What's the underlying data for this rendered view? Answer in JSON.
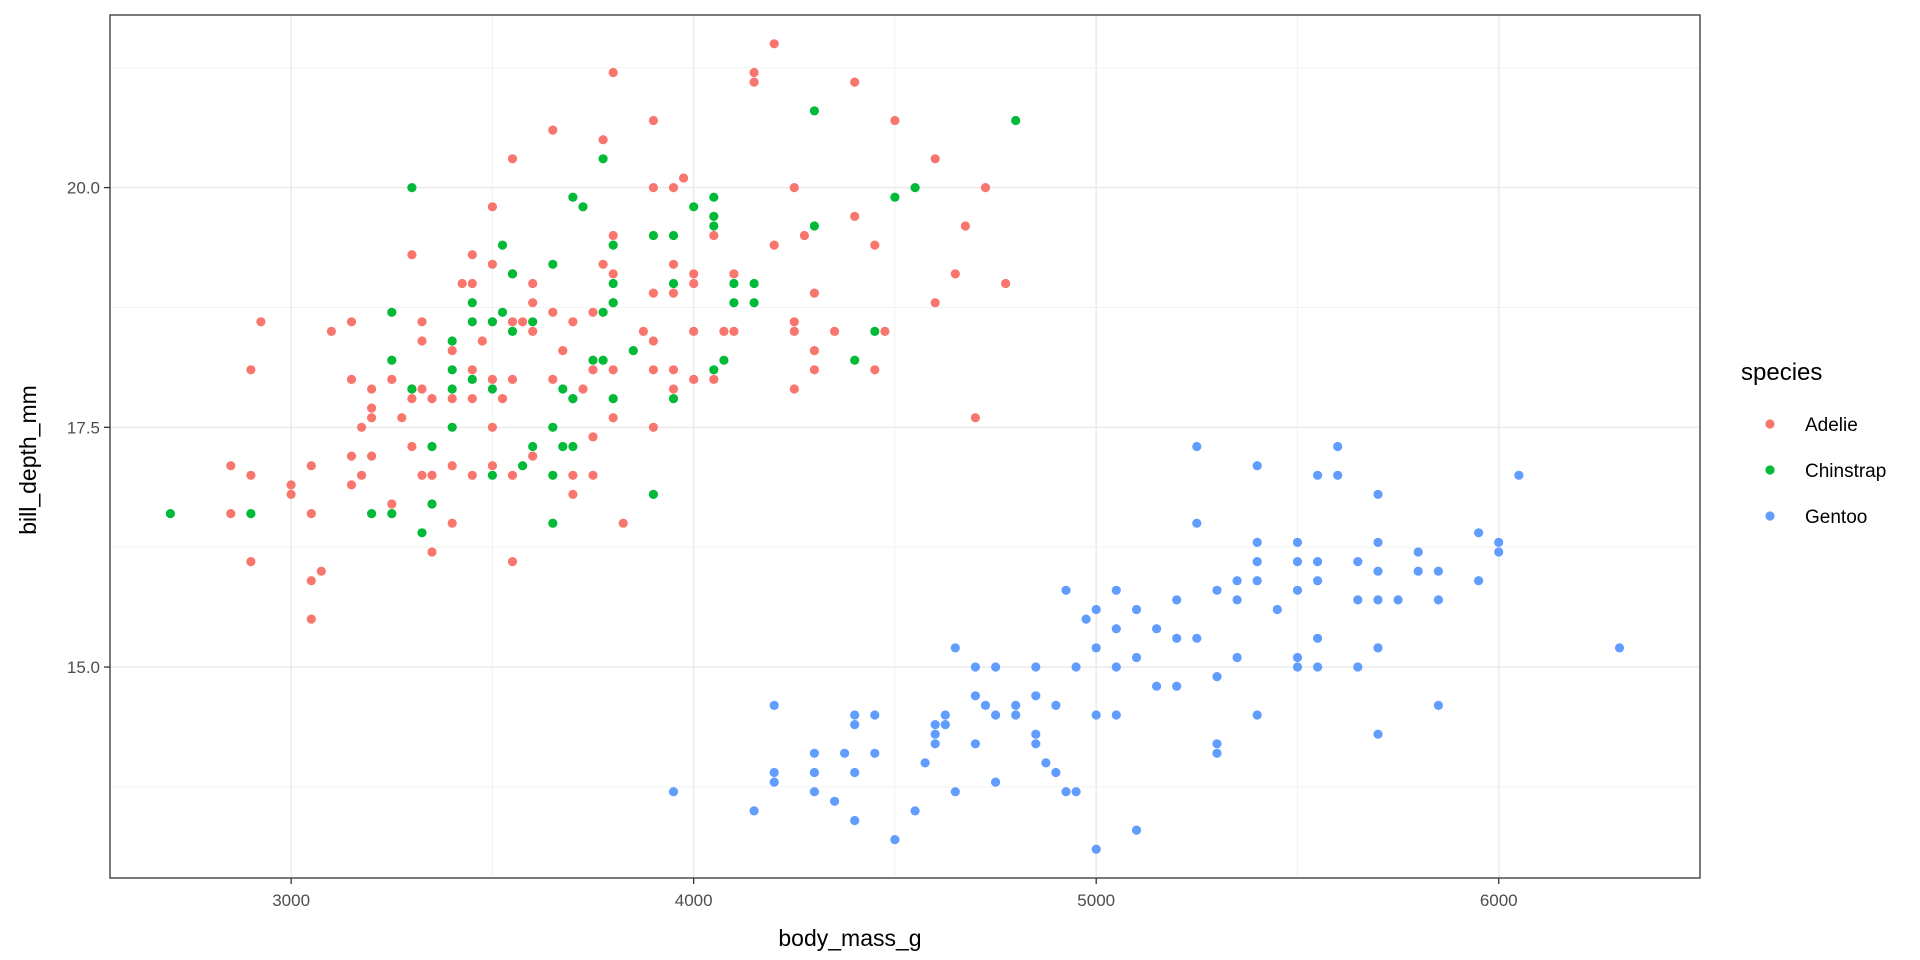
{
  "chart_data": {
    "type": "scatter",
    "title": "",
    "xlabel": "body_mass_g",
    "ylabel": "bill_depth_mm",
    "xlim": [
      2550,
      6500
    ],
    "ylim": [
      12.8,
      21.8
    ],
    "x_ticks": [
      3000,
      4000,
      5000,
      6000
    ],
    "x_tick_labels": [
      "3000",
      "4000",
      "5000",
      "6000"
    ],
    "y_ticks": [
      15.0,
      17.5,
      20.0
    ],
    "y_tick_labels": [
      "15.0",
      "17.5",
      "20.0"
    ],
    "grid": true,
    "legend": {
      "title": "species",
      "position": "right"
    },
    "series": [
      {
        "name": "Adelie",
        "color": "#F8766D",
        "points": [
          [
            2850,
            17.1
          ],
          [
            2850,
            16.6
          ],
          [
            2900,
            18.1
          ],
          [
            2900,
            17.0
          ],
          [
            2900,
            16.1
          ],
          [
            2925,
            18.6
          ],
          [
            3000,
            16.9
          ],
          [
            3000,
            16.8
          ],
          [
            3050,
            17.1
          ],
          [
            3050,
            16.6
          ],
          [
            3050,
            15.9
          ],
          [
            3050,
            15.5
          ],
          [
            3075,
            16.0
          ],
          [
            3100,
            18.5
          ],
          [
            3150,
            18.6
          ],
          [
            3150,
            18.0
          ],
          [
            3150,
            17.2
          ],
          [
            3150,
            16.9
          ],
          [
            3175,
            17.5
          ],
          [
            3175,
            17.0
          ],
          [
            3200,
            17.9
          ],
          [
            3200,
            17.7
          ],
          [
            3200,
            17.6
          ],
          [
            3200,
            17.2
          ],
          [
            3250,
            18.0
          ],
          [
            3250,
            16.7
          ],
          [
            3275,
            17.6
          ],
          [
            3300,
            19.3
          ],
          [
            3300,
            17.9
          ],
          [
            3300,
            17.8
          ],
          [
            3300,
            17.3
          ],
          [
            3325,
            18.6
          ],
          [
            3325,
            18.4
          ],
          [
            3325,
            17.9
          ],
          [
            3325,
            17.0
          ],
          [
            3350,
            17.8
          ],
          [
            3350,
            17.0
          ],
          [
            3350,
            16.2
          ],
          [
            3400,
            18.3
          ],
          [
            3400,
            17.8
          ],
          [
            3400,
            17.1
          ],
          [
            3400,
            16.5
          ],
          [
            3425,
            19.0
          ],
          [
            3450,
            19.3
          ],
          [
            3450,
            19.0
          ],
          [
            3450,
            18.1
          ],
          [
            3450,
            17.8
          ],
          [
            3450,
            17.0
          ],
          [
            3475,
            18.4
          ],
          [
            3500,
            19.8
          ],
          [
            3500,
            19.2
          ],
          [
            3500,
            18.6
          ],
          [
            3500,
            18.0
          ],
          [
            3500,
            17.5
          ],
          [
            3500,
            17.1
          ],
          [
            3525,
            17.8
          ],
          [
            3550,
            20.3
          ],
          [
            3550,
            19.1
          ],
          [
            3550,
            18.6
          ],
          [
            3550,
            18.0
          ],
          [
            3550,
            17.0
          ],
          [
            3550,
            16.1
          ],
          [
            3575,
            18.6
          ],
          [
            3600,
            19.0
          ],
          [
            3600,
            18.8
          ],
          [
            3600,
            18.5
          ],
          [
            3600,
            17.2
          ],
          [
            3650,
            20.6
          ],
          [
            3650,
            18.7
          ],
          [
            3650,
            18.0
          ],
          [
            3675,
            18.3
          ],
          [
            3700,
            18.6
          ],
          [
            3700,
            17.8
          ],
          [
            3700,
            17.0
          ],
          [
            3700,
            16.8
          ],
          [
            3725,
            17.9
          ],
          [
            3750,
            18.7
          ],
          [
            3750,
            18.1
          ],
          [
            3750,
            17.4
          ],
          [
            3750,
            17.0
          ],
          [
            3775,
            20.5
          ],
          [
            3775,
            19.2
          ],
          [
            3800,
            21.2
          ],
          [
            3800,
            19.5
          ],
          [
            3800,
            19.1
          ],
          [
            3800,
            18.8
          ],
          [
            3800,
            18.1
          ],
          [
            3800,
            17.6
          ],
          [
            3825,
            16.5
          ],
          [
            3875,
            18.5
          ],
          [
            3900,
            20.7
          ],
          [
            3900,
            20.0
          ],
          [
            3900,
            18.9
          ],
          [
            3900,
            18.4
          ],
          [
            3900,
            18.1
          ],
          [
            3900,
            17.5
          ],
          [
            3950,
            20.0
          ],
          [
            3950,
            19.2
          ],
          [
            3950,
            18.9
          ],
          [
            3950,
            18.1
          ],
          [
            3950,
            17.9
          ],
          [
            3975,
            20.1
          ],
          [
            4000,
            19.1
          ],
          [
            4000,
            19.0
          ],
          [
            4000,
            18.5
          ],
          [
            4000,
            18.0
          ],
          [
            4050,
            19.5
          ],
          [
            4050,
            18.0
          ],
          [
            4075,
            18.5
          ],
          [
            4100,
            19.1
          ],
          [
            4100,
            18.5
          ],
          [
            4150,
            21.2
          ],
          [
            4150,
            21.1
          ],
          [
            4200,
            21.5
          ],
          [
            4200,
            19.4
          ],
          [
            4250,
            20.0
          ],
          [
            4250,
            18.6
          ],
          [
            4250,
            18.5
          ],
          [
            4250,
            17.9
          ],
          [
            4275,
            19.5
          ],
          [
            4300,
            18.9
          ],
          [
            4300,
            18.3
          ],
          [
            4300,
            18.1
          ],
          [
            4350,
            18.5
          ],
          [
            4400,
            21.1
          ],
          [
            4400,
            19.7
          ],
          [
            4450,
            19.4
          ],
          [
            4450,
            18.1
          ],
          [
            4475,
            18.5
          ],
          [
            4500,
            20.7
          ],
          [
            4600,
            20.3
          ],
          [
            4600,
            18.8
          ],
          [
            4650,
            19.1
          ],
          [
            4675,
            19.6
          ],
          [
            4700,
            17.6
          ],
          [
            4725,
            20.0
          ],
          [
            4775,
            19.0
          ]
        ]
      },
      {
        "name": "Chinstrap",
        "color": "#00BA38",
        "points": [
          [
            2700,
            16.6
          ],
          [
            2900,
            16.6
          ],
          [
            3200,
            16.6
          ],
          [
            3250,
            18.7
          ],
          [
            3250,
            18.2
          ],
          [
            3250,
            16.6
          ],
          [
            3300,
            20.0
          ],
          [
            3300,
            17.9
          ],
          [
            3325,
            16.4
          ],
          [
            3350,
            17.3
          ],
          [
            3350,
            16.7
          ],
          [
            3400,
            18.4
          ],
          [
            3400,
            18.1
          ],
          [
            3400,
            17.9
          ],
          [
            3400,
            17.5
          ],
          [
            3450,
            18.8
          ],
          [
            3450,
            18.6
          ],
          [
            3450,
            18.0
          ],
          [
            3500,
            18.6
          ],
          [
            3500,
            17.9
          ],
          [
            3500,
            17.0
          ],
          [
            3525,
            19.4
          ],
          [
            3525,
            18.7
          ],
          [
            3550,
            19.1
          ],
          [
            3550,
            18.5
          ],
          [
            3575,
            17.1
          ],
          [
            3600,
            18.6
          ],
          [
            3600,
            17.3
          ],
          [
            3650,
            19.2
          ],
          [
            3650,
            17.5
          ],
          [
            3650,
            17.0
          ],
          [
            3650,
            16.5
          ],
          [
            3675,
            17.9
          ],
          [
            3675,
            17.3
          ],
          [
            3700,
            19.9
          ],
          [
            3700,
            17.8
          ],
          [
            3700,
            17.3
          ],
          [
            3725,
            19.8
          ],
          [
            3750,
            18.2
          ],
          [
            3775,
            20.3
          ],
          [
            3775,
            18.7
          ],
          [
            3775,
            18.2
          ],
          [
            3800,
            19.4
          ],
          [
            3800,
            19.0
          ],
          [
            3800,
            18.8
          ],
          [
            3800,
            17.8
          ],
          [
            3850,
            18.3
          ],
          [
            3900,
            19.5
          ],
          [
            3900,
            16.8
          ],
          [
            3950,
            19.5
          ],
          [
            3950,
            19.0
          ],
          [
            3950,
            17.8
          ],
          [
            4000,
            19.8
          ],
          [
            4050,
            19.9
          ],
          [
            4050,
            19.7
          ],
          [
            4050,
            19.6
          ],
          [
            4050,
            18.1
          ],
          [
            4075,
            18.2
          ],
          [
            4100,
            19.0
          ],
          [
            4100,
            18.8
          ],
          [
            4150,
            19.0
          ],
          [
            4150,
            18.8
          ],
          [
            4300,
            20.8
          ],
          [
            4300,
            19.6
          ],
          [
            4400,
            18.2
          ],
          [
            4450,
            18.5
          ],
          [
            4500,
            19.9
          ],
          [
            4550,
            20.0
          ],
          [
            4800,
            20.7
          ]
        ]
      },
      {
        "name": "Gentoo",
        "color": "#619CFF",
        "points": [
          [
            3950,
            13.7
          ],
          [
            4150,
            13.5
          ],
          [
            4200,
            14.6
          ],
          [
            4200,
            13.9
          ],
          [
            4200,
            13.8
          ],
          [
            4300,
            14.1
          ],
          [
            4300,
            13.9
          ],
          [
            4300,
            13.7
          ],
          [
            4350,
            13.6
          ],
          [
            4375,
            14.1
          ],
          [
            4400,
            14.5
          ],
          [
            4400,
            14.4
          ],
          [
            4400,
            13.9
          ],
          [
            4400,
            13.4
          ],
          [
            4450,
            14.5
          ],
          [
            4450,
            14.1
          ],
          [
            4500,
            13.2
          ],
          [
            4550,
            13.5
          ],
          [
            4575,
            14.0
          ],
          [
            4600,
            14.4
          ],
          [
            4600,
            14.3
          ],
          [
            4600,
            14.2
          ],
          [
            4625,
            14.5
          ],
          [
            4625,
            14.4
          ],
          [
            4650,
            15.2
          ],
          [
            4650,
            13.7
          ],
          [
            4700,
            15.0
          ],
          [
            4700,
            14.7
          ],
          [
            4700,
            14.2
          ],
          [
            4725,
            14.6
          ],
          [
            4750,
            15.0
          ],
          [
            4750,
            14.5
          ],
          [
            4750,
            13.8
          ],
          [
            4800,
            14.6
          ],
          [
            4800,
            14.5
          ],
          [
            4850,
            15.0
          ],
          [
            4850,
            14.7
          ],
          [
            4850,
            14.3
          ],
          [
            4850,
            14.2
          ],
          [
            4875,
            14.0
          ],
          [
            4900,
            14.6
          ],
          [
            4900,
            13.9
          ],
          [
            4925,
            15.8
          ],
          [
            4925,
            13.7
          ],
          [
            4950,
            15.0
          ],
          [
            4950,
            13.7
          ],
          [
            4975,
            15.5
          ],
          [
            5000,
            15.6
          ],
          [
            5000,
            15.2
          ],
          [
            5000,
            14.5
          ],
          [
            5000,
            13.1
          ],
          [
            5050,
            15.8
          ],
          [
            5050,
            15.4
          ],
          [
            5050,
            15.0
          ],
          [
            5050,
            14.5
          ],
          [
            5100,
            15.6
          ],
          [
            5100,
            15.1
          ],
          [
            5100,
            13.3
          ],
          [
            5150,
            15.4
          ],
          [
            5150,
            14.8
          ],
          [
            5200,
            15.7
          ],
          [
            5200,
            15.3
          ],
          [
            5200,
            14.8
          ],
          [
            5250,
            17.3
          ],
          [
            5250,
            16.5
          ],
          [
            5250,
            15.3
          ],
          [
            5300,
            15.8
          ],
          [
            5300,
            14.9
          ],
          [
            5300,
            14.2
          ],
          [
            5300,
            14.1
          ],
          [
            5350,
            15.9
          ],
          [
            5350,
            15.7
          ],
          [
            5350,
            15.1
          ],
          [
            5400,
            17.1
          ],
          [
            5400,
            16.3
          ],
          [
            5400,
            16.1
          ],
          [
            5400,
            15.9
          ],
          [
            5400,
            14.5
          ],
          [
            5450,
            15.6
          ],
          [
            5500,
            16.3
          ],
          [
            5500,
            16.1
          ],
          [
            5500,
            15.8
          ],
          [
            5500,
            15.1
          ],
          [
            5500,
            15.0
          ],
          [
            5550,
            17.0
          ],
          [
            5550,
            16.1
          ],
          [
            5550,
            15.9
          ],
          [
            5550,
            15.3
          ],
          [
            5550,
            15.0
          ],
          [
            5600,
            17.3
          ],
          [
            5600,
            17.0
          ],
          [
            5650,
            16.1
          ],
          [
            5650,
            15.7
          ],
          [
            5650,
            15.0
          ],
          [
            5700,
            16.8
          ],
          [
            5700,
            16.3
          ],
          [
            5700,
            16.0
          ],
          [
            5700,
            15.7
          ],
          [
            5700,
            15.2
          ],
          [
            5700,
            14.3
          ],
          [
            5750,
            15.7
          ],
          [
            5800,
            16.2
          ],
          [
            5800,
            16.0
          ],
          [
            5850,
            16.0
          ],
          [
            5850,
            15.7
          ],
          [
            5850,
            14.6
          ],
          [
            5950,
            16.4
          ],
          [
            5950,
            15.9
          ],
          [
            6000,
            16.3
          ],
          [
            6000,
            16.2
          ],
          [
            6050,
            17.0
          ],
          [
            6300,
            15.2
          ]
        ]
      }
    ]
  }
}
